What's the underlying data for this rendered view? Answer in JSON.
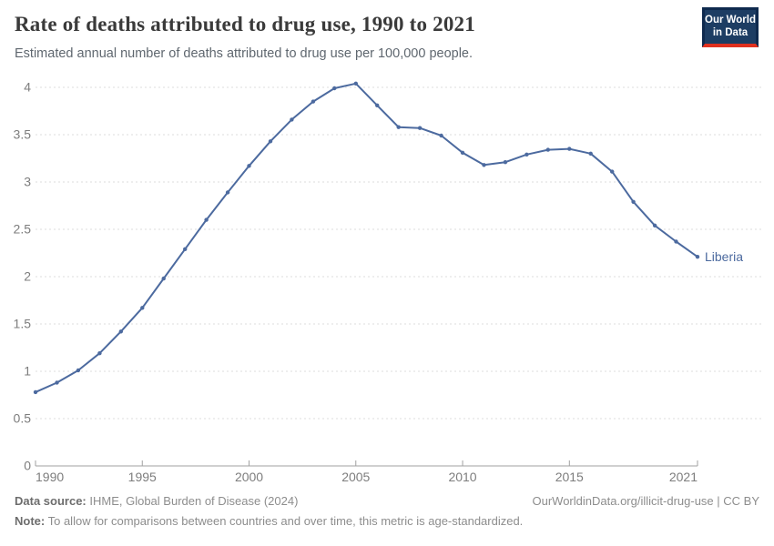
{
  "header": {
    "title": "Rate of deaths attributed to drug use, 1990 to 2021",
    "subtitle": "Estimated annual number of deaths attributed to drug use per 100,000 people."
  },
  "logo": {
    "line1": "Our World",
    "line2": "in Data",
    "bg_color": "#1d3d63",
    "frame_color": "#0f2a4e",
    "stripe_color": "#e0301e"
  },
  "chart_data": {
    "type": "line",
    "title": "Rate of deaths attributed to drug use, 1990 to 2021",
    "xlabel": "",
    "ylabel": "",
    "x": [
      1990,
      1991,
      1992,
      1993,
      1994,
      1995,
      1996,
      1997,
      1998,
      1999,
      2000,
      2001,
      2002,
      2003,
      2004,
      2005,
      2006,
      2007,
      2008,
      2009,
      2010,
      2011,
      2012,
      2013,
      2014,
      2015,
      2016,
      2017,
      2018,
      2019,
      2020,
      2021
    ],
    "series": [
      {
        "name": "Liberia",
        "color": "#4c6a9f",
        "values": [
          0.78,
          0.88,
          1.01,
          1.19,
          1.42,
          1.67,
          1.98,
          2.29,
          2.6,
          2.89,
          3.17,
          3.43,
          3.66,
          3.85,
          3.99,
          4.04,
          3.81,
          3.58,
          3.57,
          3.49,
          3.31,
          3.18,
          3.21,
          3.29,
          3.34,
          3.35,
          3.3,
          3.11,
          2.79,
          2.54,
          2.37,
          2.21
        ]
      }
    ],
    "ylim": [
      0,
      4.2
    ],
    "yticks": [
      0,
      0.5,
      1,
      1.5,
      2,
      2.5,
      3,
      3.5,
      4
    ],
    "xticks": [
      1990,
      1995,
      2000,
      2005,
      2010,
      2015,
      2021
    ],
    "grid": "horizontal-dashed",
    "legend_position": "end-of-line-label",
    "colors": {
      "grid": "#dcdcdc",
      "axis": "#a1a1a1",
      "tick_label": "#7d7d7d"
    }
  },
  "footer": {
    "source_label": "Data source:",
    "source_text": "IHME, Global Burden of Disease (2024)",
    "link": "OurWorldinData.org/illicit-drug-use | CC BY",
    "note_label": "Note:",
    "note_text": "To allow for comparisons between countries and over time, this metric is age-standardized."
  }
}
